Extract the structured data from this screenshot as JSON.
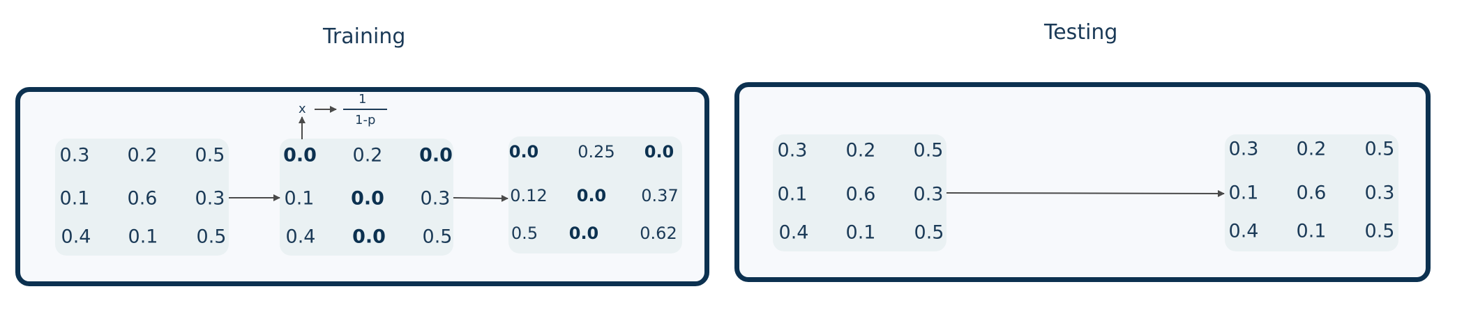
{
  "training": {
    "title": "Training",
    "input": [
      [
        "0.3",
        "0.2",
        "0.5"
      ],
      [
        "0.1",
        "0.6",
        "0.3"
      ],
      [
        "0.4",
        "0.1",
        "0.5"
      ]
    ],
    "dropped": [
      [
        "0.0",
        "0.2",
        "0.0"
      ],
      [
        "0.1",
        "0.0",
        "0.3"
      ],
      [
        "0.4",
        "0.0",
        "0.5"
      ]
    ],
    "scaled": [
      [
        "0.0",
        "0.25",
        "0.0"
      ],
      [
        "0.12",
        "0.0",
        "0.37"
      ],
      [
        "0.5",
        "0.0",
        "0.62"
      ]
    ],
    "formula": {
      "var": "x",
      "numerator": "1",
      "denominator": "1-p"
    }
  },
  "testing": {
    "title": "Testing",
    "input": [
      [
        "0.3",
        "0.2",
        "0.5"
      ],
      [
        "0.1",
        "0.6",
        "0.3"
      ],
      [
        "0.4",
        "0.1",
        "0.5"
      ]
    ],
    "output": [
      [
        "0.3",
        "0.2",
        "0.5"
      ],
      [
        "0.1",
        "0.6",
        "0.3"
      ],
      [
        "0.4",
        "0.1",
        "0.5"
      ]
    ]
  }
}
